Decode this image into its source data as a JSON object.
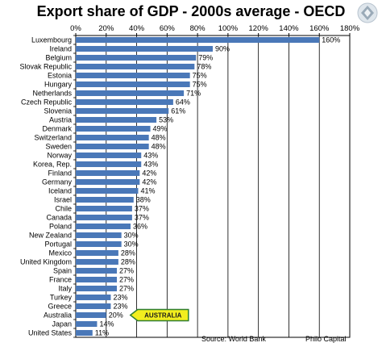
{
  "chart_data": {
    "type": "bar",
    "orientation": "horizontal",
    "title": "Export share of GDP - 2000s average - OECD",
    "x_ticks": [
      "0%",
      "20%",
      "40%",
      "60%",
      "80%",
      "100%",
      "120%",
      "140%",
      "160%",
      "180%"
    ],
    "xlim": [
      0,
      180
    ],
    "grid": true,
    "categories": [
      "Luxembourg",
      "Ireland",
      "Belgium",
      "Slovak Republic",
      "Estonia",
      "Hungary",
      "Netherlands",
      "Czech Republic",
      "Slovenia",
      "Austria",
      "Denmark",
      "Switzerland",
      "Sweden",
      "Norway",
      "Korea, Rep.",
      "Finland",
      "Germany",
      "Iceland",
      "Israel",
      "Chile",
      "Canada",
      "Poland",
      "New Zealand",
      "Portugal",
      "Mexico",
      "United Kingdom",
      "Spain",
      "France",
      "Italy",
      "Turkey",
      "Greece",
      "Australia",
      "Japan",
      "United States"
    ],
    "values": [
      160,
      90,
      79,
      78,
      75,
      75,
      71,
      64,
      61,
      53,
      49,
      48,
      48,
      43,
      43,
      42,
      42,
      41,
      38,
      37,
      37,
      36,
      30,
      30,
      28,
      28,
      27,
      27,
      27,
      23,
      23,
      20,
      14,
      11
    ],
    "value_labels": [
      "160%",
      "90%",
      "79%",
      "78%",
      "75%",
      "75%",
      "71%",
      "64%",
      "61%",
      "53%",
      "49%",
      "48%",
      "48%",
      "43%",
      "43%",
      "42%",
      "42%",
      "41%",
      "38%",
      "37%",
      "37%",
      "36%",
      "30%",
      "30%",
      "28%",
      "28%",
      "27%",
      "27%",
      "27%",
      "23%",
      "23%",
      "20%",
      "14%",
      "11%"
    ],
    "bar_color": "#4a78b8",
    "callout": {
      "text": "AUSTRALIA",
      "category": "Australia",
      "fill": "#f2ee1e",
      "border": "#2e7d32"
    },
    "source": "Source: World Bank",
    "credit": "Philo Capital"
  }
}
